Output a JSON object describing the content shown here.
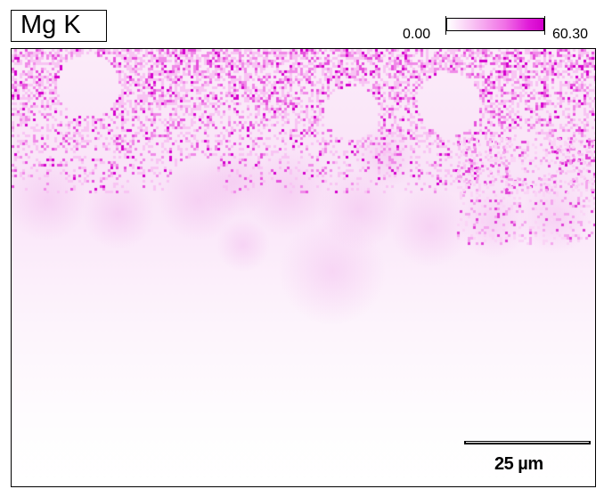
{
  "map": {
    "element_label": "Mg K",
    "colorscale": {
      "min_label": "0.00",
      "max_label": "60.30",
      "min_color": "#ffffff",
      "max_color": "#d400cc"
    },
    "scale_bar": {
      "label": "25 µm"
    }
  }
}
